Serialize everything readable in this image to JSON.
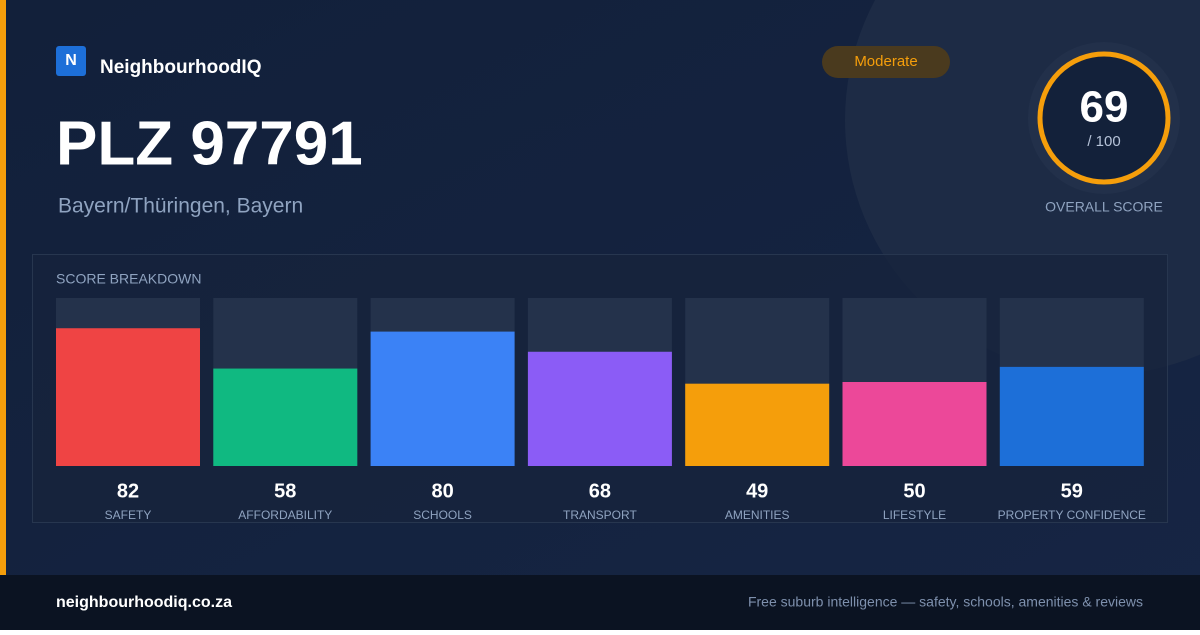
{
  "brand": {
    "logo": "N",
    "name": "NeighbourhoodIQ"
  },
  "badge": "Moderate",
  "header": {
    "title": "PLZ 97791",
    "subtitle": "Bayern/Thüringen, Bayern"
  },
  "score": {
    "value": 69,
    "max_label": "/ 100",
    "label": "OVERALL SCORE"
  },
  "chart_data": {
    "type": "bar",
    "title": "SCORE BREAKDOWN",
    "categories": [
      "SAFETY",
      "AFFORDABILITY",
      "SCHOOLS",
      "TRANSPORT",
      "AMENITIES",
      "LIFESTYLE",
      "PROPERTY CONFIDENCE"
    ],
    "values": [
      82,
      58,
      80,
      68,
      49,
      50,
      59
    ],
    "colors": [
      "#ef4444",
      "#10b981",
      "#3b82f6",
      "#8b5cf6",
      "#f59e0b",
      "#ec4899",
      "#1d6fd8"
    ],
    "ylim": [
      0,
      100
    ]
  },
  "footer": {
    "site": "neighbourhoodiq.co.za",
    "tagline": "Free suburb intelligence — safety, schools, amenities & reviews"
  }
}
